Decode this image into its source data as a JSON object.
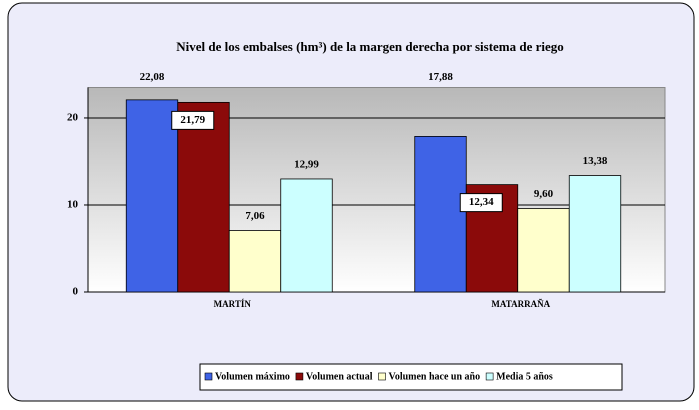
{
  "chart_data": {
    "type": "bar",
    "title": "Nivel de los embalses (hm³) de la margen derecha por sistema de riego",
    "categories": [
      "MARTÍN",
      "MATARRAÑA"
    ],
    "series": [
      {
        "name": "Volumen máximo",
        "color": "#3f63e6",
        "values": [
          22.08,
          17.88
        ],
        "value_labels": [
          "22,08",
          "17,88"
        ]
      },
      {
        "name": "Volumen actual",
        "color": "#8b0a0a",
        "values": [
          21.79,
          12.34
        ],
        "value_labels": [
          "21,79",
          "12,34"
        ]
      },
      {
        "name": "Volumen hace un año",
        "color": "#ffffcc",
        "values": [
          7.06,
          9.6
        ],
        "value_labels": [
          "7,06",
          "9,60"
        ]
      },
      {
        "name": "Media 5 años",
        "color": "#ccffff",
        "values": [
          12.99,
          13.38
        ],
        "value_labels": [
          "12,99",
          "13,38"
        ]
      }
    ],
    "ylim": [
      0,
      23.5
    ],
    "yticks": [
      0,
      10,
      20
    ],
    "grid": true,
    "legend": "bottom"
  }
}
